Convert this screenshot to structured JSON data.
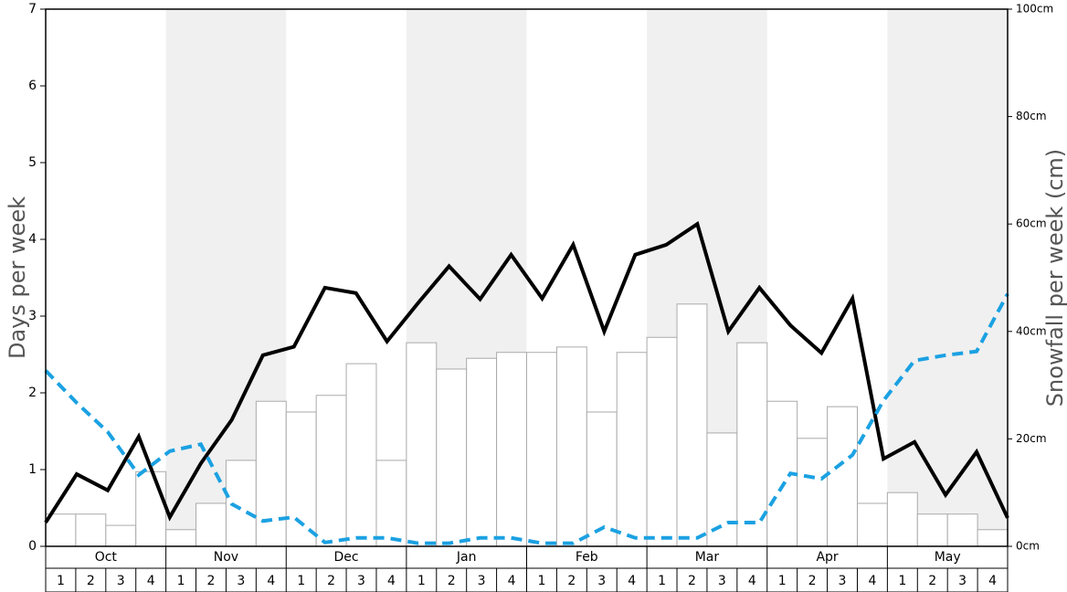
{
  "chart_data": {
    "type": "bar-line",
    "y_label": "Days per week",
    "y2_label": "Snowfall per week (cm)",
    "months": [
      "Oct",
      "Nov",
      "Dec",
      "Jan",
      "Feb",
      "Mar",
      "Apr",
      "May"
    ],
    "categories": [
      "1",
      "2",
      "3",
      "4",
      "1",
      "2",
      "3",
      "4",
      "1",
      "2",
      "3",
      "4",
      "1",
      "2",
      "3",
      "4",
      "1",
      "2",
      "3",
      "4",
      "1",
      "2",
      "3",
      "4",
      "1",
      "2",
      "3",
      "4",
      "1",
      "2",
      "3",
      "4"
    ],
    "ylim": [
      0,
      7
    ],
    "yticks": [
      0,
      1,
      2,
      3,
      4,
      5,
      6,
      7
    ],
    "y2lim": [
      0,
      100
    ],
    "y2ticks": [
      {
        "value": 0,
        "label": "0cm"
      },
      {
        "value": 20,
        "label": "20cm"
      },
      {
        "value": 40,
        "label": "40cm"
      },
      {
        "value": 60,
        "label": "60cm"
      },
      {
        "value": 80,
        "label": "80cm"
      },
      {
        "value": 100,
        "label": "100cm"
      }
    ],
    "series": [
      {
        "type": "bar",
        "axis": "y2",
        "color": "#ffffff",
        "values": [
          6.0,
          6.0,
          3.9,
          13.9,
          3.1,
          8.0,
          16.0,
          27.0,
          25.0,
          28.1,
          34.0,
          16.0,
          37.9,
          33.0,
          35.0,
          36.1,
          36.1,
          37.1,
          25.0,
          36.1,
          38.9,
          45.1,
          21.1,
          37.9,
          27.0,
          20.1,
          26.0,
          8.0,
          10.0,
          6.0,
          6.0,
          3.1
        ]
      },
      {
        "type": "line",
        "axis": "y",
        "color": "#000000",
        "dash": false,
        "values": [
          0.31,
          0.94,
          0.73,
          1.43,
          0.38,
          1.08,
          1.65,
          2.49,
          2.6,
          3.37,
          3.3,
          2.67,
          3.17,
          3.65,
          3.22,
          3.8,
          3.23,
          3.93,
          2.8,
          3.8,
          3.93,
          4.2,
          2.8,
          3.37,
          2.88,
          2.52,
          3.23,
          1.14,
          1.36,
          0.67,
          1.23,
          0.37
        ]
      },
      {
        "type": "line",
        "axis": "y",
        "color": "#1ba1e2",
        "dash": true,
        "values": [
          2.29,
          1.87,
          1.49,
          0.93,
          1.24,
          1.33,
          0.55,
          0.33,
          0.38,
          0.05,
          0.11,
          0.11,
          0.04,
          0.04,
          0.11,
          0.11,
          0.04,
          0.04,
          0.25,
          0.11,
          0.11,
          0.11,
          0.31,
          0.31,
          0.95,
          0.88,
          1.19,
          1.9,
          2.42,
          2.49,
          2.54,
          3.29
        ]
      }
    ]
  }
}
